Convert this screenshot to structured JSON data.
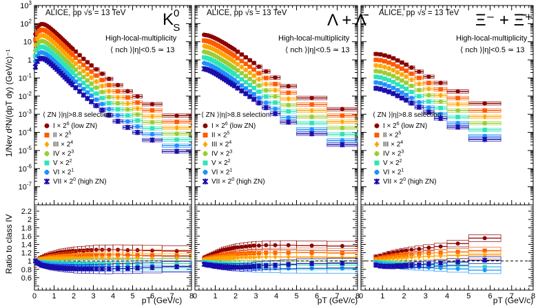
{
  "chart_data": {
    "type": "scatter",
    "title": "",
    "header": "ALICE, pp √s = 13 TeV",
    "selection_label": "High-local-multiplicity",
    "selection_value": "⟨ nch ⟩|η|<0.5 ≃ 13",
    "legend_title": "⟨ ZN ⟩|η|>8.8 selection:",
    "xlabel": "pT (GeV/c)",
    "ylabel_top": "1/Nev d²N/(dpT dy) (GeV/c)⁻¹",
    "ylabel_bottom": "Ratio to class IV",
    "xlim": [
      0,
      8
    ],
    "ylim_top_log10": [
      -8,
      3
    ],
    "ylim_bottom": [
      0.3,
      2.35
    ],
    "x_ticks": [
      0,
      1,
      2,
      3,
      4,
      5,
      6,
      7,
      8
    ],
    "x_tick_labels": [
      "0",
      "1",
      "2",
      "3",
      "4",
      "5",
      "6",
      "7",
      "8"
    ],
    "y_ticks_top": [
      {
        "exp": 3,
        "label": "10^3"
      },
      {
        "exp": 2,
        "label": "10^2"
      },
      {
        "exp": 1,
        "label": "10"
      },
      {
        "exp": 0,
        "label": "1"
      },
      {
        "exp": -1,
        "label": "10^-1"
      },
      {
        "exp": -2,
        "label": "10^-2"
      },
      {
        "exp": -3,
        "label": "10^-3"
      },
      {
        "exp": -4,
        "label": "10^-4"
      },
      {
        "exp": -5,
        "label": "10^-5"
      },
      {
        "exp": -6,
        "label": "10^-6"
      },
      {
        "exp": -7,
        "label": "10^-7"
      }
    ],
    "y_ticks_bottom": [
      {
        "v": 0.6,
        "label": "0.6"
      },
      {
        "v": 0.8,
        "label": "0.8"
      },
      {
        "v": 1.0,
        "label": "1"
      },
      {
        "v": 1.2,
        "label": "1.2"
      },
      {
        "v": 1.4,
        "label": "1.4"
      },
      {
        "v": 1.6,
        "label": "1.6"
      },
      {
        "v": 1.8,
        "label": "1.8"
      },
      {
        "v": 2.0,
        "label": "2"
      },
      {
        "v": 2.2,
        "label": "2.2"
      }
    ],
    "reference_line": 1.0,
    "classes": [
      {
        "name": "I",
        "scale": "2^6",
        "note": "low ZN",
        "color": "#8b0000",
        "marker": "circle"
      },
      {
        "name": "II",
        "scale": "2^5",
        "note": "",
        "color": "#ff5a00",
        "marker": "square"
      },
      {
        "name": "III",
        "scale": "2^4",
        "note": "",
        "color": "#ffa500",
        "marker": "diamond"
      },
      {
        "name": "IV",
        "scale": "2^3",
        "note": "",
        "color": "#9acd32",
        "marker": "cross"
      },
      {
        "name": "V",
        "scale": "2^2",
        "note": "",
        "color": "#2ee5b8",
        "marker": "square"
      },
      {
        "name": "VI",
        "scale": "2^1",
        "note": "",
        "color": "#1e90ff",
        "marker": "cross"
      },
      {
        "name": "VII",
        "scale": "2^0",
        "note": "high ZN",
        "color": "#1a0dab",
        "marker": "star"
      }
    ],
    "panels": [
      {
        "particle": "K0S",
        "label_main": "K",
        "label_sup": "0",
        "label_sub": "S",
        "bins": [
          [
            0.0,
            0.1
          ],
          [
            0.1,
            0.2
          ],
          [
            0.2,
            0.3
          ],
          [
            0.3,
            0.4
          ],
          [
            0.4,
            0.5
          ],
          [
            0.5,
            0.6
          ],
          [
            0.6,
            0.7
          ],
          [
            0.7,
            0.8
          ],
          [
            0.8,
            0.9
          ],
          [
            0.9,
            1.0
          ],
          [
            1.0,
            1.1
          ],
          [
            1.1,
            1.2
          ],
          [
            1.2,
            1.3
          ],
          [
            1.3,
            1.4
          ],
          [
            1.4,
            1.5
          ],
          [
            1.5,
            1.6
          ],
          [
            1.6,
            1.7
          ],
          [
            1.7,
            1.8
          ],
          [
            1.8,
            1.9
          ],
          [
            1.9,
            2.0
          ],
          [
            2.0,
            2.2
          ],
          [
            2.2,
            2.4
          ],
          [
            2.4,
            2.6
          ],
          [
            2.6,
            2.8
          ],
          [
            2.8,
            3.0
          ],
          [
            3.0,
            3.3
          ],
          [
            3.3,
            3.6
          ],
          [
            3.6,
            4.0
          ],
          [
            4.0,
            4.5
          ],
          [
            4.5,
            5.0
          ],
          [
            5.0,
            5.5
          ],
          [
            5.5,
            6.5
          ],
          [
            6.5,
            8.0
          ]
        ],
        "x": [
          0.05,
          0.15,
          0.25,
          0.35,
          0.45,
          0.55,
          0.65,
          0.75,
          0.85,
          0.95,
          1.05,
          1.15,
          1.25,
          1.35,
          1.45,
          1.55,
          1.65,
          1.75,
          1.85,
          1.95,
          2.1,
          2.3,
          2.5,
          2.7,
          2.9,
          3.15,
          3.45,
          3.8,
          4.25,
          4.75,
          5.25,
          6.0,
          7.25
        ],
        "y_class_IV_unscaled": [
          0.41,
          0.86,
          1.22,
          1.36,
          1.32,
          1.2,
          1.03,
          0.86,
          0.7,
          0.56,
          0.45,
          0.355,
          0.28,
          0.22,
          0.172,
          0.135,
          0.106,
          0.083,
          0.065,
          0.052,
          0.036,
          0.0225,
          0.0142,
          0.0092,
          0.0061,
          0.0037,
          0.0021,
          0.0011,
          0.0005,
          0.00023,
          0.00012,
          4.5e-05,
          1.05e-05
        ],
        "ratio_to_IV": {
          "I": [
            1.0,
            1.02,
            1.06,
            1.08,
            1.1,
            1.12,
            1.13,
            1.15,
            1.16,
            1.17,
            1.18,
            1.19,
            1.2,
            1.21,
            1.21,
            1.22,
            1.22,
            1.23,
            1.23,
            1.24,
            1.24,
            1.25,
            1.25,
            1.26,
            1.26,
            1.27,
            1.27,
            1.27,
            1.27,
            1.26,
            1.26,
            1.25,
            1.24
          ],
          "II": [
            1.0,
            1.02,
            1.04,
            1.05,
            1.06,
            1.07,
            1.08,
            1.09,
            1.1,
            1.1,
            1.11,
            1.11,
            1.12,
            1.12,
            1.12,
            1.13,
            1.13,
            1.13,
            1.13,
            1.14,
            1.14,
            1.14,
            1.15,
            1.15,
            1.15,
            1.15,
            1.15,
            1.15,
            1.15,
            1.15,
            1.14,
            1.14,
            1.13
          ],
          "III": [
            1.0,
            1.01,
            1.02,
            1.03,
            1.03,
            1.04,
            1.04,
            1.05,
            1.05,
            1.05,
            1.05,
            1.06,
            1.06,
            1.06,
            1.06,
            1.06,
            1.06,
            1.06,
            1.06,
            1.07,
            1.07,
            1.07,
            1.07,
            1.07,
            1.07,
            1.07,
            1.07,
            1.07,
            1.07,
            1.07,
            1.07,
            1.06,
            1.06
          ],
          "V": [
            1.0,
            0.99,
            0.98,
            0.97,
            0.97,
            0.96,
            0.96,
            0.96,
            0.95,
            0.95,
            0.95,
            0.95,
            0.95,
            0.94,
            0.94,
            0.94,
            0.94,
            0.94,
            0.94,
            0.94,
            0.94,
            0.94,
            0.93,
            0.93,
            0.93,
            0.93,
            0.93,
            0.93,
            0.93,
            0.93,
            0.93,
            0.93,
            0.94
          ],
          "VI": [
            1.0,
            0.98,
            0.96,
            0.95,
            0.94,
            0.93,
            0.92,
            0.92,
            0.91,
            0.91,
            0.9,
            0.9,
            0.9,
            0.89,
            0.89,
            0.89,
            0.89,
            0.88,
            0.88,
            0.88,
            0.88,
            0.88,
            0.87,
            0.87,
            0.87,
            0.87,
            0.87,
            0.87,
            0.87,
            0.87,
            0.87,
            0.88,
            0.88
          ],
          "VII": [
            1.0,
            0.96,
            0.93,
            0.9,
            0.89,
            0.88,
            0.87,
            0.86,
            0.85,
            0.85,
            0.84,
            0.84,
            0.83,
            0.83,
            0.83,
            0.82,
            0.82,
            0.82,
            0.82,
            0.82,
            0.81,
            0.81,
            0.81,
            0.81,
            0.81,
            0.81,
            0.81,
            0.81,
            0.82,
            0.82,
            0.83,
            0.84,
            0.86
          ]
        }
      },
      {
        "particle": "Lambda",
        "label_main": "Λ + Λ̄",
        "label_sup": "",
        "label_sub": "",
        "bins": [
          [
            0.4,
            0.5
          ],
          [
            0.5,
            0.6
          ],
          [
            0.6,
            0.7
          ],
          [
            0.7,
            0.8
          ],
          [
            0.8,
            0.9
          ],
          [
            0.9,
            1.0
          ],
          [
            1.0,
            1.1
          ],
          [
            1.1,
            1.2
          ],
          [
            1.2,
            1.3
          ],
          [
            1.3,
            1.4
          ],
          [
            1.4,
            1.5
          ],
          [
            1.5,
            1.6
          ],
          [
            1.6,
            1.7
          ],
          [
            1.7,
            1.8
          ],
          [
            1.8,
            1.9
          ],
          [
            1.9,
            2.0
          ],
          [
            2.0,
            2.2
          ],
          [
            2.2,
            2.4
          ],
          [
            2.4,
            2.6
          ],
          [
            2.6,
            2.8
          ],
          [
            2.8,
            3.0
          ],
          [
            3.0,
            3.3
          ],
          [
            3.3,
            3.7
          ],
          [
            3.7,
            4.2
          ],
          [
            4.2,
            5.0
          ],
          [
            5.0,
            6.5
          ],
          [
            6.5,
            8.0
          ]
        ],
        "x": [
          0.45,
          0.55,
          0.65,
          0.75,
          0.85,
          0.95,
          1.05,
          1.15,
          1.25,
          1.35,
          1.45,
          1.55,
          1.65,
          1.75,
          1.85,
          1.95,
          2.1,
          2.3,
          2.5,
          2.7,
          2.9,
          3.15,
          3.5,
          3.95,
          4.6,
          5.75,
          7.25
        ],
        "y_class_IV_unscaled": [
          0.35,
          0.33,
          0.31,
          0.28,
          0.25,
          0.22,
          0.19,
          0.165,
          0.14,
          0.12,
          0.102,
          0.087,
          0.073,
          0.062,
          0.052,
          0.044,
          0.033,
          0.023,
          0.016,
          0.011,
          0.0077,
          0.0048,
          0.0026,
          0.0012,
          0.0004,
          9e-05,
          2.2e-05
        ],
        "ratio_to_IV": {
          "I": [
            1.08,
            1.1,
            1.12,
            1.14,
            1.16,
            1.18,
            1.2,
            1.22,
            1.24,
            1.26,
            1.27,
            1.28,
            1.29,
            1.3,
            1.31,
            1.32,
            1.33,
            1.34,
            1.35,
            1.36,
            1.37,
            1.37,
            1.38,
            1.38,
            1.38,
            1.37,
            1.36
          ],
          "II": [
            1.04,
            1.06,
            1.07,
            1.08,
            1.09,
            1.1,
            1.11,
            1.12,
            1.13,
            1.14,
            1.15,
            1.15,
            1.16,
            1.16,
            1.17,
            1.17,
            1.17,
            1.18,
            1.18,
            1.19,
            1.19,
            1.19,
            1.2,
            1.2,
            1.2,
            1.2,
            1.19
          ],
          "III": [
            1.02,
            1.03,
            1.03,
            1.04,
            1.04,
            1.05,
            1.05,
            1.06,
            1.06,
            1.06,
            1.07,
            1.07,
            1.07,
            1.08,
            1.08,
            1.08,
            1.08,
            1.09,
            1.09,
            1.09,
            1.09,
            1.1,
            1.1,
            1.1,
            1.1,
            1.1,
            1.09
          ],
          "V": [
            0.97,
            0.97,
            0.96,
            0.96,
            0.95,
            0.95,
            0.95,
            0.94,
            0.94,
            0.94,
            0.93,
            0.93,
            0.93,
            0.93,
            0.92,
            0.92,
            0.92,
            0.92,
            0.91,
            0.91,
            0.91,
            0.91,
            0.91,
            0.91,
            0.9,
            0.9,
            0.9
          ],
          "VI": [
            0.95,
            0.94,
            0.93,
            0.92,
            0.91,
            0.9,
            0.9,
            0.89,
            0.88,
            0.88,
            0.87,
            0.87,
            0.86,
            0.86,
            0.85,
            0.85,
            0.85,
            0.84,
            0.84,
            0.84,
            0.83,
            0.83,
            0.83,
            0.83,
            0.82,
            0.82,
            0.82
          ],
          "VII": [
            0.92,
            0.91,
            0.9,
            0.9,
            0.89,
            0.88,
            0.88,
            0.87,
            0.87,
            0.86,
            0.86,
            0.86,
            0.85,
            0.85,
            0.85,
            0.85,
            0.85,
            0.85,
            0.86,
            0.86,
            0.87,
            0.88,
            0.89,
            0.9,
            0.92,
            0.94,
            0.95
          ]
        }
      },
      {
        "particle": "Xi",
        "label_main": "Ξ⁻ + Ξ̄⁺",
        "label_sup": "",
        "label_sub": "",
        "bins": [
          [
            0.6,
            0.8
          ],
          [
            0.8,
            1.0
          ],
          [
            1.0,
            1.2
          ],
          [
            1.2,
            1.4
          ],
          [
            1.4,
            1.6
          ],
          [
            1.6,
            1.8
          ],
          [
            1.8,
            2.0
          ],
          [
            2.0,
            2.2
          ],
          [
            2.2,
            2.5
          ],
          [
            2.5,
            2.9
          ],
          [
            2.9,
            3.4
          ],
          [
            3.4,
            4.0
          ],
          [
            4.0,
            5.0
          ],
          [
            5.0,
            6.5
          ]
        ],
        "x": [
          0.7,
          0.9,
          1.1,
          1.3,
          1.5,
          1.7,
          1.9,
          2.1,
          2.35,
          2.7,
          3.15,
          3.7,
          4.5,
          5.75
        ],
        "y_class_IV_unscaled": [
          0.03,
          0.028,
          0.024,
          0.02,
          0.016,
          0.012,
          0.009,
          0.0068,
          0.0046,
          0.0027,
          0.0014,
          0.00062,
          0.0002,
          4e-05
        ],
        "ratio_to_IV": {
          "I": [
            1.1,
            1.12,
            1.15,
            1.18,
            1.2,
            1.22,
            1.24,
            1.25,
            1.27,
            1.29,
            1.32,
            1.35,
            1.42,
            1.55
          ],
          "II": [
            1.05,
            1.07,
            1.09,
            1.1,
            1.12,
            1.13,
            1.14,
            1.15,
            1.16,
            1.17,
            1.19,
            1.2,
            1.22,
            1.25
          ],
          "III": [
            1.02,
            1.03,
            1.04,
            1.05,
            1.06,
            1.07,
            1.08,
            1.08,
            1.09,
            1.1,
            1.11,
            1.12,
            1.13,
            1.14
          ],
          "V": [
            0.97,
            0.96,
            0.95,
            0.95,
            0.94,
            0.93,
            0.93,
            0.92,
            0.92,
            0.91,
            0.9,
            0.89,
            0.88,
            0.86
          ],
          "VI": [
            0.95,
            0.93,
            0.91,
            0.9,
            0.89,
            0.88,
            0.87,
            0.86,
            0.86,
            0.85,
            0.84,
            0.83,
            0.81,
            0.78
          ],
          "VII": [
            0.9,
            0.88,
            0.87,
            0.87,
            0.87,
            0.88,
            0.88,
            0.89,
            0.9,
            0.91,
            0.93,
            0.95,
            0.98,
            1.02
          ]
        }
      }
    ]
  }
}
